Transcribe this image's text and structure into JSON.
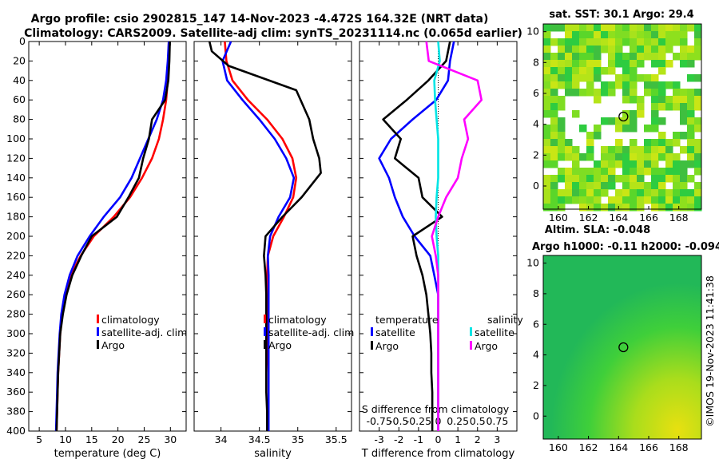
{
  "header": {
    "line1": "Argo profile: csio 2902815_147 14-Nov-2023 -4.472S 164.32E (NRT data)",
    "line2": "Climatology: CARS2009. Satellite-adj clim: synTS_20231114.nc (0.065d earlier)"
  },
  "colors": {
    "climatology": "#ff0000",
    "satellite": "#0000ff",
    "argo": "#000000",
    "s_satellite": "#00e5e5",
    "s_argo": "#ff00ff"
  },
  "chart_data": [
    {
      "id": "temperature",
      "type": "line",
      "xlabel": "temperature (deg C)",
      "ylabel": "",
      "xlim": [
        3,
        33
      ],
      "ylim": [
        0,
        400
      ],
      "y_inverted": true,
      "xticks": [
        "5",
        "10",
        "15",
        "20",
        "25",
        "30"
      ],
      "yticks": [
        "0",
        "20",
        "40",
        "60",
        "80",
        "100",
        "120",
        "140",
        "160",
        "180",
        "200",
        "220",
        "240",
        "260",
        "280",
        "300",
        "320",
        "340",
        "360",
        "380",
        "400"
      ],
      "legend": [
        "climatology",
        "satellite-adj. clim",
        "Argo"
      ],
      "series": [
        {
          "name": "climatology",
          "color": "#ff0000",
          "x": [
            29.7,
            29.6,
            29.5,
            29.2,
            28.6,
            27.8,
            26.5,
            24.6,
            22.3,
            19.2,
            15.4,
            12.9,
            11.0,
            10.0,
            9.4,
            9.0,
            8.8,
            8.6,
            8.5,
            8.4,
            8.3
          ],
          "y": [
            0,
            20,
            40,
            60,
            80,
            100,
            120,
            140,
            160,
            180,
            200,
            220,
            240,
            260,
            280,
            300,
            320,
            340,
            360,
            380,
            400
          ]
        },
        {
          "name": "satellite-adj. clim",
          "color": "#0000ff",
          "x": [
            29.7,
            29.5,
            29.2,
            28.6,
            27.4,
            25.8,
            24.2,
            22.6,
            20.4,
            17.3,
            14.6,
            12.3,
            10.8,
            9.8,
            9.2,
            8.9,
            8.7,
            8.5,
            8.4,
            8.3,
            8.2
          ],
          "y": [
            0,
            20,
            40,
            60,
            80,
            100,
            120,
            140,
            160,
            180,
            200,
            220,
            240,
            260,
            280,
            300,
            320,
            340,
            360,
            380,
            400
          ]
        },
        {
          "name": "Argo",
          "color": "#000000",
          "x": [
            29.9,
            29.8,
            29.6,
            29.0,
            26.5,
            25.9,
            24.8,
            24.0,
            22.0,
            19.8,
            15.0,
            13.0,
            11.3,
            10.2,
            9.5,
            9.0,
            8.8,
            8.6,
            8.5,
            8.4,
            8.3
          ],
          "y": [
            0,
            20,
            40,
            60,
            80,
            100,
            120,
            140,
            160,
            180,
            200,
            220,
            240,
            260,
            280,
            300,
            320,
            340,
            360,
            380,
            400
          ]
        }
      ]
    },
    {
      "id": "salinity",
      "type": "line",
      "xlabel": "salinity",
      "ylabel": "",
      "xlim": [
        33.65,
        35.7
      ],
      "ylim": [
        0,
        400
      ],
      "y_inverted": true,
      "xticks": [
        "34",
        "34.5",
        "35",
        "35.5"
      ],
      "legend": [
        "climatology",
        "satellite-adj. clim",
        "Argo"
      ],
      "series": [
        {
          "name": "climatology",
          "color": "#ff0000",
          "x": [
            34.05,
            34.07,
            34.15,
            34.35,
            34.6,
            34.8,
            34.93,
            34.98,
            34.94,
            34.82,
            34.68,
            34.61,
            34.6,
            34.6,
            34.6,
            34.61,
            34.61,
            34.62,
            34.62,
            34.62,
            34.62
          ],
          "y": [
            0,
            20,
            40,
            60,
            80,
            100,
            120,
            140,
            160,
            180,
            200,
            220,
            240,
            260,
            280,
            300,
            320,
            340,
            360,
            380,
            400
          ]
        },
        {
          "name": "satellite-adj. clim",
          "color": "#0000ff",
          "x": [
            34.13,
            34.02,
            34.08,
            34.28,
            34.5,
            34.7,
            34.85,
            34.95,
            34.9,
            34.75,
            34.64,
            34.61,
            34.62,
            34.62,
            34.62,
            34.62,
            34.62,
            34.62,
            34.62,
            34.62,
            34.62
          ],
          "y": [
            0,
            20,
            40,
            60,
            80,
            100,
            120,
            140,
            160,
            180,
            200,
            220,
            240,
            260,
            280,
            300,
            320,
            340,
            360,
            380,
            400
          ]
        },
        {
          "name": "Argo",
          "color": "#000000",
          "x": [
            33.85,
            33.88,
            34.1,
            34.98,
            35.15,
            35.2,
            35.28,
            35.3,
            35.05,
            34.8,
            34.58,
            34.56,
            34.58,
            34.59,
            34.59,
            34.59,
            34.59,
            34.59,
            34.59,
            34.6,
            34.6
          ],
          "y": [
            0,
            10,
            25,
            50,
            80,
            100,
            120,
            135,
            160,
            180,
            200,
            220,
            240,
            260,
            280,
            300,
            320,
            340,
            360,
            380,
            400
          ]
        }
      ]
    },
    {
      "id": "difference",
      "type": "line",
      "xlabel": "T difference from climatology",
      "ylabel": "",
      "xlim": [
        -4,
        4
      ],
      "ylim": [
        0,
        400
      ],
      "y_inverted": true,
      "xticks": [
        "-3",
        "-2",
        "-1",
        "0",
        "1",
        "2",
        "3"
      ],
      "top_note": "S difference from climatology",
      "top_ticks": [
        "-0.75",
        "-0.5",
        "-0.25",
        "0",
        "0.25",
        "0.5",
        "0.75"
      ],
      "legend_t": {
        "title": "temperature",
        "items": [
          "satellite",
          "Argo"
        ]
      },
      "legend_s": {
        "title": "salinity",
        "items": [
          "satellite",
          "Argo"
        ]
      },
      "series": [
        {
          "name": "T satellite",
          "color": "#0000ff",
          "x": [
            0.8,
            0.6,
            0.5,
            -0.1,
            -1.3,
            -2.4,
            -3.0,
            -2.5,
            -2.2,
            -1.8,
            -1.2,
            -0.4,
            -0.2,
            0.0,
            0.0,
            0.0,
            0.0,
            0.0,
            0.0,
            0.0,
            0.0
          ],
          "y": [
            0,
            20,
            40,
            60,
            80,
            100,
            120,
            140,
            160,
            180,
            200,
            220,
            240,
            260,
            280,
            300,
            320,
            340,
            360,
            380,
            400
          ]
        },
        {
          "name": "T Argo",
          "color": "#000000",
          "x": [
            0.6,
            0.4,
            -0.5,
            -1.6,
            -2.8,
            -1.9,
            -2.2,
            -1.0,
            -0.8,
            0.2,
            -1.3,
            -1.1,
            -0.8,
            -0.6,
            -0.5,
            -0.4,
            -0.35,
            -0.35,
            -0.3,
            -0.3,
            -0.3
          ],
          "y": [
            0,
            20,
            40,
            60,
            80,
            100,
            120,
            140,
            160,
            180,
            200,
            220,
            240,
            260,
            280,
            300,
            320,
            340,
            360,
            380,
            400
          ]
        },
        {
          "name": "S satellite",
          "color": "#00e5e5",
          "x": [
            0.0,
            0.02,
            -0.05,
            -0.04,
            -0.02,
            0.0,
            0.0,
            0.0,
            -0.02,
            -0.03,
            -0.02,
            0.0,
            0.0,
            0.0,
            0.0,
            0.0,
            0.0,
            0.0,
            0.0,
            0.0,
            0.0
          ],
          "y": [
            0,
            20,
            40,
            60,
            80,
            100,
            120,
            140,
            160,
            180,
            200,
            220,
            240,
            260,
            280,
            300,
            320,
            340,
            360,
            380,
            400
          ]
        },
        {
          "name": "S Argo",
          "color": "#ff00ff",
          "x": [
            -0.15,
            -0.12,
            0.5,
            0.55,
            0.33,
            0.38,
            0.3,
            0.25,
            0.1,
            0.0,
            -0.08,
            -0.03,
            0.0,
            0.0,
            0.0,
            0.0,
            0.0,
            0.0,
            0.0,
            0.0,
            0.0
          ],
          "y": [
            0,
            20,
            40,
            60,
            80,
            100,
            120,
            140,
            160,
            180,
            200,
            220,
            240,
            260,
            280,
            300,
            320,
            340,
            360,
            380,
            400
          ]
        }
      ]
    },
    {
      "id": "sst_map",
      "type": "heatmap",
      "title": "sat. SST: 30.1 Argo: 29.4",
      "xlim": [
        159,
        169.5
      ],
      "ylim": [
        -1.5,
        10.5
      ],
      "xticks": [
        "160",
        "162",
        "164",
        "166",
        "168"
      ],
      "yticks": [
        "0",
        "2",
        "4",
        "6",
        "8",
        "10"
      ],
      "marker": {
        "lon": 164.32,
        "lat": 4.5
      }
    },
    {
      "id": "sla_map",
      "type": "heatmap",
      "title": "Altim. SLA: -0.048",
      "subtitle": "Argo h1000: -0.11 h2000: -0.094",
      "xlim": [
        159,
        169.5
      ],
      "ylim": [
        -1.5,
        10.5
      ],
      "xticks": [
        "160",
        "162",
        "164",
        "166",
        "168"
      ],
      "yticks": [
        "0",
        "2",
        "4",
        "6",
        "8",
        "10"
      ],
      "marker": {
        "lon": 164.32,
        "lat": 4.5
      }
    }
  ],
  "side_label": "©IMOS 19-Nov-2023 11:41:38"
}
